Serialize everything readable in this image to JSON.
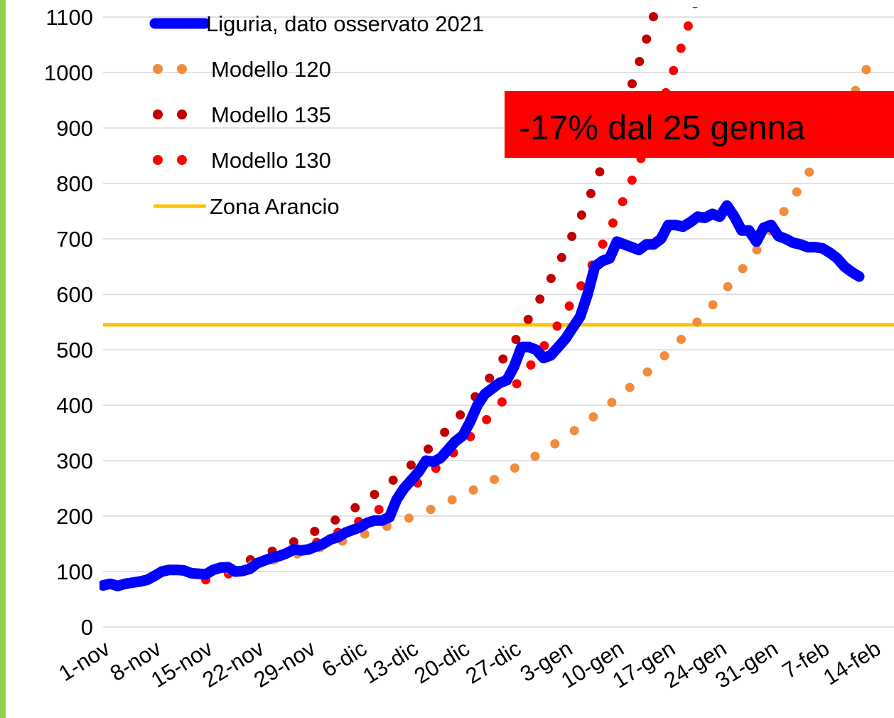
{
  "chart_data": {
    "type": "line",
    "categories": [
      "1-nov",
      null,
      null,
      null,
      null,
      null,
      null,
      "8-nov",
      null,
      null,
      null,
      null,
      null,
      null,
      "15-nov",
      null,
      null,
      null,
      null,
      null,
      null,
      "22-nov",
      null,
      null,
      null,
      null,
      null,
      null,
      "29-nov",
      null,
      null,
      null,
      null,
      null,
      null,
      "6-dic",
      null,
      null,
      null,
      null,
      null,
      null,
      "13-dic",
      null,
      null,
      null,
      null,
      null,
      null,
      "20-dic",
      null,
      null,
      null,
      null,
      null,
      null,
      "27-dic",
      null,
      null,
      null,
      null,
      null,
      null,
      "3-gen",
      null,
      null,
      null,
      null,
      null,
      null,
      "10-gen",
      null,
      null,
      null,
      null,
      null,
      null,
      "17-gen",
      null,
      null,
      null,
      null,
      null,
      null,
      "24-gen",
      null,
      null,
      null,
      null,
      null,
      null,
      "31-gen",
      null,
      null,
      null,
      null,
      null,
      null,
      "7-feb",
      null,
      null,
      null,
      null,
      null,
      null,
      "14-feb"
    ],
    "series": [
      {
        "name": "Liguria, dato osservato 2021",
        "color": "#0000ff",
        "style": "solid",
        "values": [
          75,
          78,
          74,
          78,
          80,
          82,
          85,
          92,
          100,
          103,
          103,
          102,
          97,
          96,
          95,
          103,
          107,
          108,
          100,
          101,
          105,
          115,
          120,
          125,
          128,
          133,
          140,
          138,
          140,
          145,
          150,
          158,
          162,
          170,
          175,
          180,
          188,
          192,
          192,
          198,
          230,
          250,
          265,
          280,
          300,
          298,
          305,
          320,
          335,
          345,
          370,
          400,
          420,
          430,
          440,
          445,
          470,
          505,
          505,
          500,
          485,
          490,
          505,
          520,
          540,
          560,
          600,
          650,
          660,
          665,
          695,
          690,
          685,
          680,
          690,
          690,
          700,
          725,
          725,
          722,
          730,
          740,
          738,
          745,
          740,
          760,
          740,
          715,
          715,
          695,
          720,
          725,
          705,
          700,
          693,
          690,
          685,
          685,
          683,
          675,
          665,
          650,
          640,
          632,
          null,
          null
        ]
      },
      {
        "name": "Modello 120",
        "color": "#f08c3c",
        "style": "dotted",
        "values": [
          null,
          null,
          null,
          null,
          null,
          null,
          null,
          null,
          null,
          null,
          null,
          null,
          null,
          null,
          95,
          97.5,
          100.1,
          102.8,
          105.5,
          108.3,
          111.2,
          114.2,
          117.2,
          120.3,
          123.5,
          126.8,
          130.2,
          133.6,
          137.2,
          140.8,
          144.6,
          148.4,
          152.4,
          156.4,
          160.6,
          164.8,
          169.2,
          173.7,
          178.3,
          183.1,
          187.9,
          192.9,
          198.1,
          203.3,
          208.7,
          214,
          220,
          226,
          232,
          238,
          244,
          251,
          257,
          264,
          271,
          278,
          286,
          293,
          301,
          309,
          317,
          326,
          334,
          343,
          352,
          362,
          371,
          381,
          391,
          402,
          412,
          423,
          435,
          446,
          458,
          470,
          483,
          496,
          509,
          522,
          536,
          551,
          565,
          580,
          596,
          612,
          628,
          644,
          661,
          679,
          697,
          716,
          735,
          754,
          774,
          795,
          816,
          838,
          860,
          883,
          906,
          930,
          955,
          980,
          1006,
          1033
        ]
      },
      {
        "name": "Modello 135",
        "color": "#c00000",
        "style": "dotted",
        "values": [
          null,
          null,
          null,
          null,
          null,
          null,
          null,
          null,
          null,
          null,
          null,
          null,
          null,
          null,
          95,
          98.9,
          102.9,
          107.2,
          111.6,
          116.1,
          120.9,
          125.9,
          131,
          136.4,
          142,
          147.8,
          153.9,
          160.2,
          166.7,
          173.6,
          180.7,
          188.1,
          195.8,
          203.8,
          212.2,
          220.9,
          229.9,
          239.3,
          249.2,
          259.4,
          270,
          281.1,
          292.6,
          304.6,
          317.1,
          330.1,
          343.6,
          357.7,
          372.4,
          387.7,
          403.6,
          420.1,
          437.3,
          455.3,
          473.9,
          493.4,
          513.6,
          534.6,
          556.6,
          579.4,
          603.1,
          627.8,
          653.6,
          680.4,
          708.3,
          737.3,
          767.6,
          799,
          831.8,
          865.9,
          901.4,
          938.4,
          976.9,
          1016.9,
          1058.6,
          1102,
          null,
          null,
          null,
          null,
          null,
          null,
          null,
          null,
          null,
          null,
          null,
          null,
          null,
          null,
          null,
          null,
          null,
          null,
          null,
          null,
          null,
          null,
          null,
          null,
          null,
          null,
          null,
          null,
          null,
          null
        ]
      },
      {
        "name": "Modello 130",
        "color": "#ff0000",
        "style": "dotted",
        "values": [
          null,
          null,
          null,
          null,
          null,
          null,
          null,
          null,
          null,
          null,
          null,
          null,
          null,
          null,
          85,
          88.4,
          91.9,
          95.5,
          99.2,
          103.2,
          107.2,
          111.5,
          115.9,
          120.4,
          125.2,
          130.1,
          135.3,
          140.6,
          146.2,
          151.9,
          157.9,
          164.2,
          170.7,
          177.4,
          184.4,
          191.7,
          199.3,
          207.1,
          215.3,
          223.8,
          232.7,
          241.9,
          251.4,
          261.4,
          271.7,
          282.4,
          293.6,
          305.2,
          317.2,
          329.8,
          342.8,
          356.3,
          370.4,
          385.1,
          400.3,
          416.1,
          432.5,
          449.6,
          467.4,
          485.9,
          505.1,
          525,
          545.8,
          567.3,
          589.7,
          613,
          637.3,
          662.4,
          688.6,
          715.8,
          744.1,
          773.5,
          804.1,
          835.8,
          868.9,
          903.2,
          938.9,
          976,
          1014.6,
          1054.7,
          1096.3,
          1139.6,
          null,
          null,
          null,
          null,
          null,
          null,
          null,
          null,
          null,
          null,
          null,
          null,
          null,
          null,
          null,
          null,
          null,
          null,
          null,
          null,
          null,
          null,
          null,
          null
        ]
      }
    ],
    "reference_lines": [
      {
        "name": "Zona Arancio",
        "value": 545,
        "color": "#ffc000"
      }
    ],
    "annotation": {
      "text": "-17% dal 25 genna",
      "color": "#ff0000"
    },
    "ylim": [
      0,
      1100
    ],
    "yticks": [
      0,
      100,
      200,
      300,
      400,
      500,
      600,
      700,
      800,
      900,
      1000,
      1100
    ],
    "grid": true
  }
}
